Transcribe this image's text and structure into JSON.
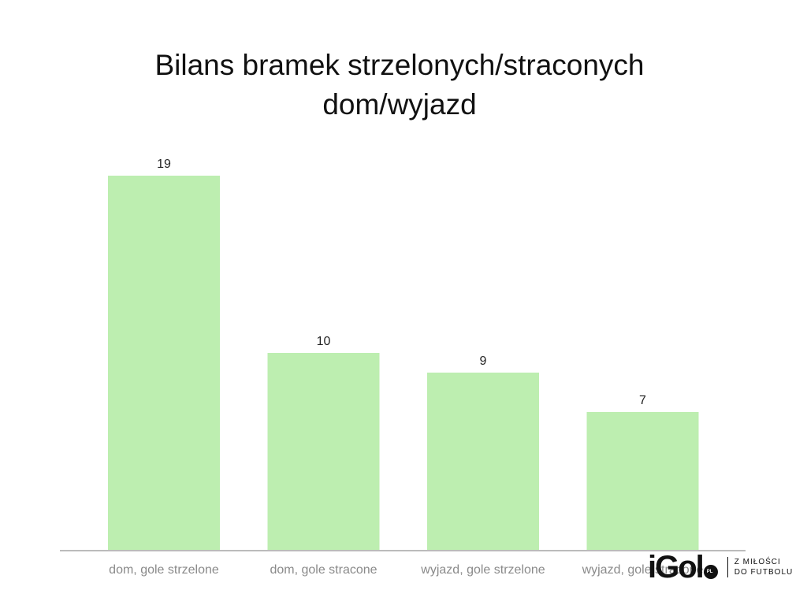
{
  "chart_data": {
    "type": "bar",
    "title_lines": [
      "Bilans bramek strzelonych/straconych",
      "dom/wyjazd"
    ],
    "categories": [
      "dom, gole strzelone",
      "dom, gole stracone",
      "wyjazd, gole strzelone",
      "wyjazd, gole stracone"
    ],
    "values": [
      19,
      10,
      9,
      7
    ],
    "ylim": [
      0,
      19
    ],
    "grid": false,
    "legend": "none",
    "data_labels": true,
    "bar_color": "#bdeeb0",
    "axis_color": "#bbbbbb"
  },
  "logo": {
    "brand": "iGol",
    "suffix": "PL",
    "tagline_line1": "Z MIŁOŚCI",
    "tagline_line2": "DO FUTBOLU"
  }
}
